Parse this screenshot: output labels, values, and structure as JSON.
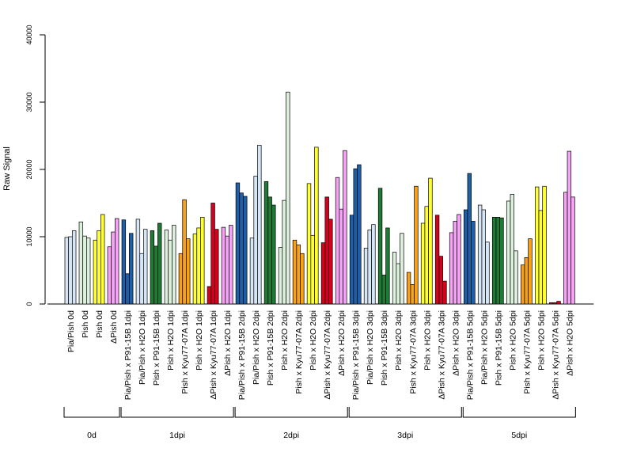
{
  "chart_data": {
    "type": "bar",
    "ylabel": "Raw Signal",
    "ylim": [
      0,
      40000
    ],
    "yticks": [
      0,
      10000,
      20000,
      30000,
      40000
    ],
    "grid": false,
    "categories": [
      {
        "label": "Pia/Pish 0d",
        "color": "#d6e6f7",
        "values": [
          9900,
          10000,
          10900
        ]
      },
      {
        "label": "Pish 0d",
        "color": "#ddf0dd",
        "values": [
          12200,
          10100,
          9800
        ]
      },
      {
        "label": "Pish 0d",
        "color": "#ffff33",
        "values": [
          9500,
          10900,
          13300
        ]
      },
      {
        "label": "ΔPish 0d",
        "color": "#f5a3f5",
        "values": [
          8500,
          10700,
          12700
        ]
      },
      {
        "label": "Pia/Pish x P91-15B 1dpi",
        "color": "#1f5fa8",
        "values": [
          12500,
          4500,
          10500
        ]
      },
      {
        "label": "Pia/Pish x H2O 1dpi",
        "color": "#d6e6f7",
        "values": [
          12600,
          7500,
          11100
        ]
      },
      {
        "label": "Pish x P91-15B 1dpi",
        "color": "#1e7a34",
        "values": [
          10900,
          8600,
          12000
        ]
      },
      {
        "label": "Pish x H2O 1dpi",
        "color": "#ddf0dd",
        "values": [
          11000,
          9500,
          11700
        ]
      },
      {
        "label": "Pish x Kyu77-07A 1dpi",
        "color": "#f7a11a",
        "values": [
          7500,
          15500,
          9700
        ]
      },
      {
        "label": "Pish x H2O 1dpi",
        "color": "#ffff33",
        "values": [
          10400,
          11300,
          12900
        ]
      },
      {
        "label": "ΔPish x Kyu77-07A 1dpi",
        "color": "#d6001c",
        "values": [
          2600,
          15000,
          11100
        ]
      },
      {
        "label": "ΔPish x H2O 1dpi",
        "color": "#f5a3f5",
        "values": [
          11400,
          10100,
          11700
        ]
      },
      {
        "label": "Pia/Pish x P91-15B 2dpi",
        "color": "#1f5fa8",
        "values": [
          18000,
          16500,
          16000
        ]
      },
      {
        "label": "Pia/Pish x H2O 2dpi",
        "color": "#d6e6f7",
        "values": [
          9800,
          19000,
          23600
        ]
      },
      {
        "label": "Pish x P91-15B 2dpi",
        "color": "#1e7a34",
        "values": [
          18200,
          15900,
          14700
        ]
      },
      {
        "label": "Pish x H2O 2dpi",
        "color": "#ddf0dd",
        "values": [
          8400,
          15400,
          31500
        ]
      },
      {
        "label": "Pish x Kyu77-07A 2dpi",
        "color": "#f7a11a",
        "values": [
          9500,
          8800,
          7500
        ]
      },
      {
        "label": "Pish x H2O 2dpi",
        "color": "#ffff33",
        "values": [
          17900,
          10200,
          23300
        ]
      },
      {
        "label": "ΔPish x Kyu77-07A 2dpi",
        "color": "#d6001c",
        "values": [
          9100,
          15900,
          12600
        ]
      },
      {
        "label": "ΔPish x H2O 2dpi",
        "color": "#f5a3f5",
        "values": [
          18800,
          14100,
          22800
        ]
      },
      {
        "label": "Pia/Pish x P91-15B 3dpi",
        "color": "#1f5fa8",
        "values": [
          13200,
          20100,
          20700
        ]
      },
      {
        "label": "Pia/Pish x H2O 3dpi",
        "color": "#d6e6f7",
        "values": [
          8300,
          11000,
          11800
        ]
      },
      {
        "label": "Pish x P91-15B 3dpi",
        "color": "#1e7a34",
        "values": [
          17200,
          4300,
          11300
        ]
      },
      {
        "label": "Pish x H2O 3dpi",
        "color": "#ddf0dd",
        "values": [
          7700,
          6000,
          10500
        ]
      },
      {
        "label": "Pish x Kyu77-07A 3dpi",
        "color": "#f7a11a",
        "values": [
          4700,
          2900,
          17500
        ]
      },
      {
        "label": "Pish x H2O 3dpi",
        "color": "#ffff33",
        "values": [
          12000,
          14500,
          18700
        ]
      },
      {
        "label": "ΔPish x Kyu77-07A 3dpi",
        "color": "#d6001c",
        "values": [
          13200,
          7100,
          3400
        ]
      },
      {
        "label": "ΔPish x H2O 3dpi",
        "color": "#f5a3f5",
        "values": [
          10600,
          12300,
          13300
        ]
      },
      {
        "label": "Pia/Pish x P91-15B 5dpi",
        "color": "#1f5fa8",
        "values": [
          14000,
          19400,
          12300
        ]
      },
      {
        "label": "Pia/Pish x H2O 5dpi",
        "color": "#d6e6f7",
        "values": [
          14700,
          14000,
          9200
        ]
      },
      {
        "label": "Pish x P91-15B 5dpi",
        "color": "#1e7a34",
        "values": [
          12900,
          12900,
          12800
        ]
      },
      {
        "label": "Pish x H2O 5dpi",
        "color": "#ddf0dd",
        "values": [
          15300,
          16300,
          7900
        ]
      },
      {
        "label": "Pish x Kyu77-07A 5dpi",
        "color": "#f7a11a",
        "values": [
          5800,
          6900,
          9700
        ]
      },
      {
        "label": "Pish x H2O 5dpi",
        "color": "#ffff33",
        "values": [
          17400,
          13900,
          17500
        ]
      },
      {
        "label": "ΔPish x Kyu77-07A 5dpi",
        "color": "#d6001c",
        "values": [
          200,
          200,
          400
        ]
      },
      {
        "label": "ΔPish x H2O 5dpi",
        "color": "#f5a3f5",
        "values": [
          16600,
          22700,
          15900
        ]
      }
    ],
    "groups": [
      {
        "label": "0d",
        "categories": 4
      },
      {
        "label": "1dpi",
        "categories": 8
      },
      {
        "label": "2dpi",
        "categories": 8
      },
      {
        "label": "3dpi",
        "categories": 8
      },
      {
        "label": "5dpi",
        "categories": 8
      }
    ]
  }
}
